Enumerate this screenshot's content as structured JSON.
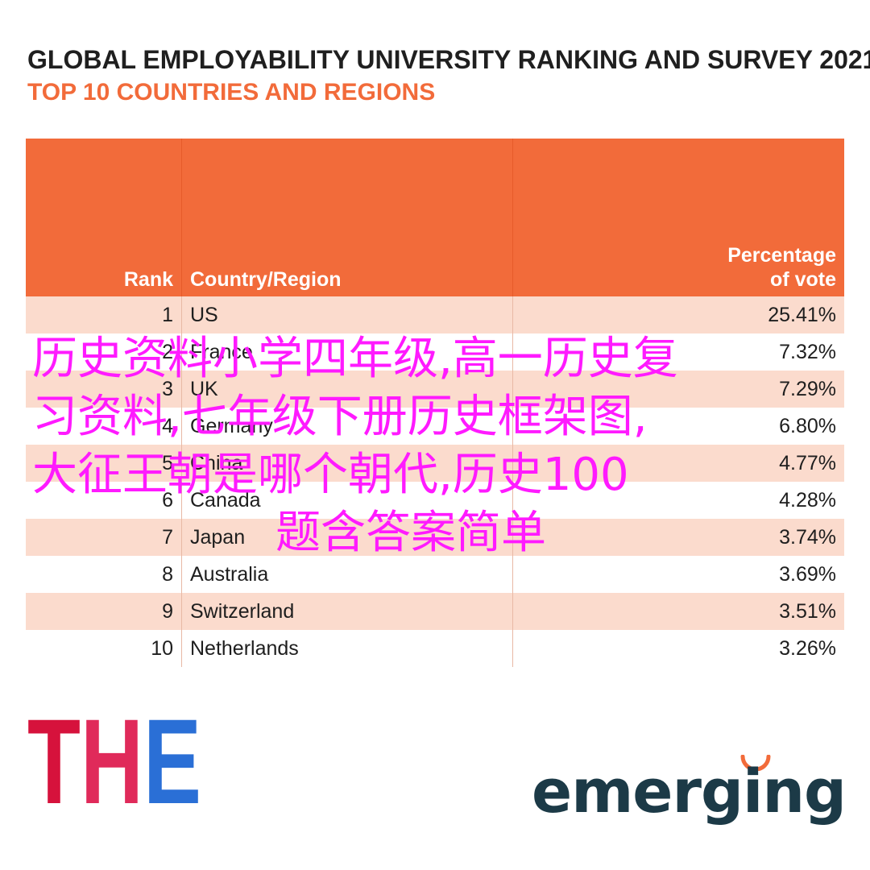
{
  "title": "GLOBAL EMPLOYABILITY UNIVERSITY RANKING AND SURVEY 2021",
  "subtitle": "TOP 10 COUNTRIES AND REGIONS",
  "headers": {
    "rank": "Rank",
    "country": "Country/Region",
    "pct_line1": "Percentage",
    "pct_line2": "of vote"
  },
  "chart_data": {
    "type": "table",
    "columns": [
      "Rank",
      "Country/Region",
      "Percentage of vote"
    ],
    "rows": [
      {
        "rank": "1",
        "country": "US",
        "pct": "25.41%"
      },
      {
        "rank": "2",
        "country": "France",
        "pct": "7.32%"
      },
      {
        "rank": "3",
        "country": "UK",
        "pct": "7.29%"
      },
      {
        "rank": "4",
        "country": "Germany",
        "pct": "6.80%"
      },
      {
        "rank": "5",
        "country": "China",
        "pct": "4.77%"
      },
      {
        "rank": "6",
        "country": "Canada",
        "pct": "4.28%"
      },
      {
        "rank": "7",
        "country": "Japan",
        "pct": "3.74%"
      },
      {
        "rank": "8",
        "country": "Australia",
        "pct": "3.69%"
      },
      {
        "rank": "9",
        "country": "Switzerland",
        "pct": "3.51%"
      },
      {
        "rank": "10",
        "country": "Netherlands",
        "pct": "3.26%"
      }
    ]
  },
  "overlay": {
    "line1": "历史资料小学四年级,高一历史复",
    "line2": "习资料,七年级下册历史框架图,",
    "line3": "大征王朝是哪个朝代,历史100",
    "line4": "题含答案简单"
  },
  "logos": {
    "the": "THE",
    "emerging": "emerging"
  },
  "colors": {
    "accent": "#f26b3a",
    "row_tint": "#fbdbcd",
    "overlay_text": "#ff1aff",
    "emerging": "#1c3a47",
    "the_t": "#d6123c",
    "the_h": "#e02a5a",
    "the_e": "#2a6fd6"
  }
}
